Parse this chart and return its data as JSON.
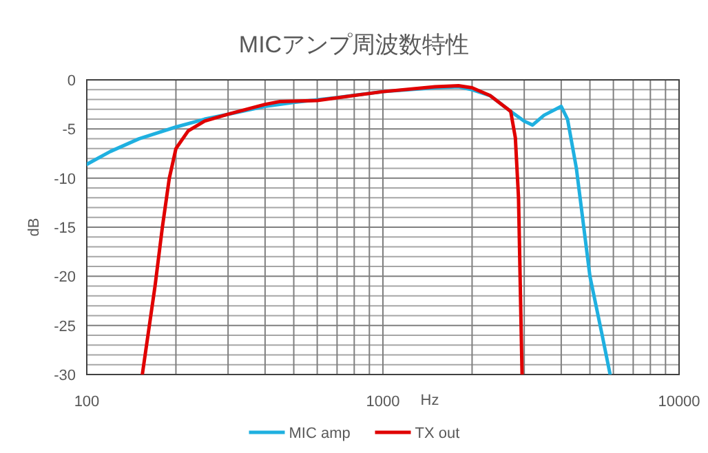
{
  "chart_data": {
    "type": "line",
    "title": "MICアンプ周波数特性",
    "xlabel": "Hz",
    "ylabel": "dB",
    "log": "x",
    "xlim": [
      100,
      10000
    ],
    "xticks": [
      100,
      1000,
      10000
    ],
    "ylim": [
      -30,
      0
    ],
    "yticks": [
      -30,
      -25,
      -20,
      -15,
      -10,
      -5,
      0
    ],
    "grid": true,
    "legend": "bottom",
    "line_style": "solid",
    "marker": "none",
    "series": [
      {
        "name": "MIC amp",
        "color": "#1fb0e0",
        "x": [
          100,
          120,
          150,
          200,
          250,
          300,
          400,
          500,
          700,
          1000,
          1500,
          1800,
          2000,
          2300,
          2700,
          3000,
          3200,
          3500,
          4000,
          4200,
          4500,
          5000,
          5500,
          5850
        ],
        "values": [
          -8.6,
          -7.3,
          -6,
          -4.8,
          -4,
          -3.5,
          -2.7,
          -2.3,
          -1.8,
          -1.2,
          -0.8,
          -0.7,
          -1,
          -1.6,
          -3.2,
          -4.2,
          -4.6,
          -3.6,
          -2.7,
          -4,
          -9,
          -20,
          -26,
          -30
        ]
      },
      {
        "name": "TX out",
        "color": "#e00000",
        "x": [
          154,
          170,
          180,
          190,
          200,
          220,
          250,
          300,
          400,
          450,
          600,
          1000,
          1500,
          1800,
          2000,
          2300,
          2700,
          2800,
          2870,
          2950
        ],
        "values": [
          -30,
          -21,
          -15,
          -10,
          -7,
          -5.2,
          -4.2,
          -3.5,
          -2.5,
          -2.2,
          -2.1,
          -1.2,
          -0.7,
          -0.6,
          -0.8,
          -1.6,
          -3.2,
          -5.9,
          -12,
          -30
        ]
      }
    ]
  }
}
